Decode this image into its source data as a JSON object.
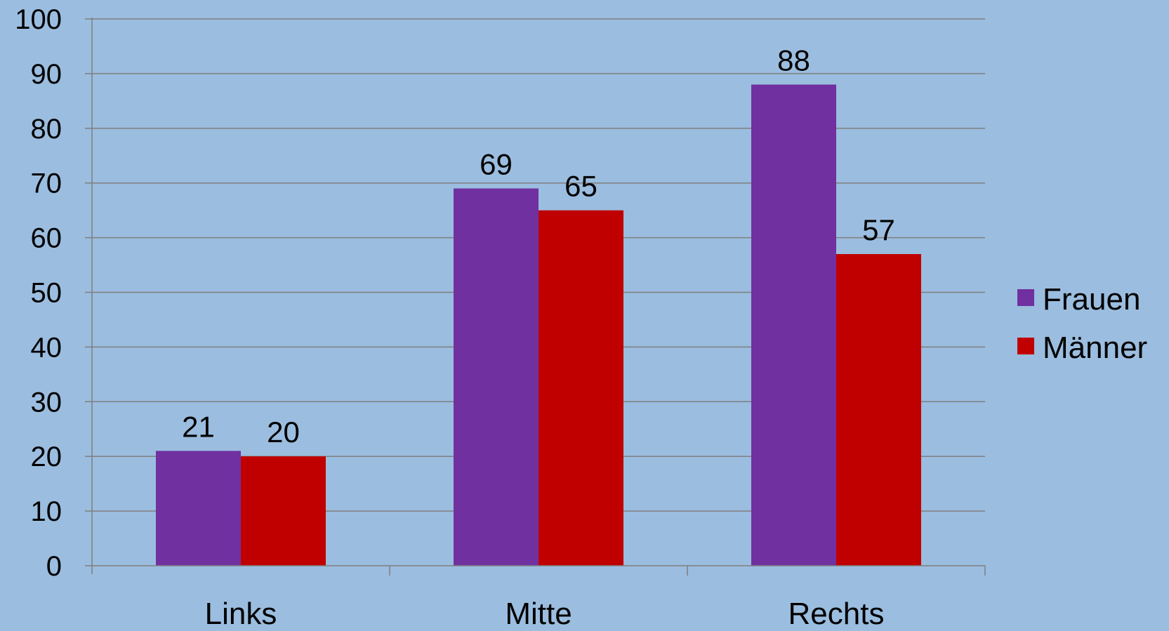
{
  "chart_data": {
    "type": "bar",
    "categories": [
      "Links",
      "Mitte",
      "Rechts"
    ],
    "series": [
      {
        "name": "Frauen",
        "values": [
          21,
          69,
          88
        ],
        "color": "#7030a0"
      },
      {
        "name": "Männer",
        "values": [
          20,
          65,
          57
        ],
        "color": "#c00000"
      }
    ],
    "ylim": [
      0,
      100
    ],
    "yticks": [
      "0",
      "10",
      "20",
      "30",
      "40",
      "50",
      "60",
      "70",
      "80",
      "90",
      "100"
    ],
    "grid": true,
    "legend": "right",
    "data_labels": true,
    "background": "#9bbddf",
    "gridline_color": "#7f7f7f"
  }
}
